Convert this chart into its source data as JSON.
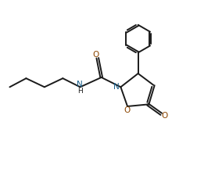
{
  "bg_color": "#ffffff",
  "line_color": "#1a1a1a",
  "N_color": "#1a5f8a",
  "O_color": "#8b4500",
  "figsize": [
    2.52,
    2.25
  ],
  "dpi": 100,
  "lw": 1.4,
  "xlim": [
    0,
    10
  ],
  "ylim": [
    0,
    9
  ]
}
